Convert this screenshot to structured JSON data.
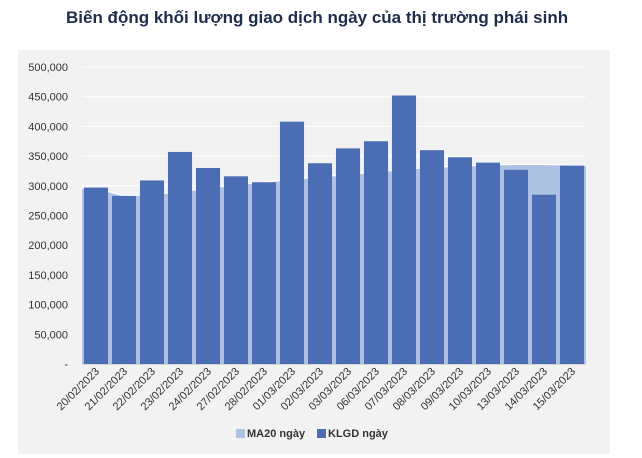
{
  "title": "Biến động khối lượng giao dịch ngày của thị trường phái sinh",
  "chart_data": {
    "type": "bar",
    "title": "Biến động khối lượng giao dịch ngày của thị trường phái sinh",
    "categories": [
      "20/02/2023",
      "21/02/2023",
      "22/02/2023",
      "23/02/2023",
      "24/02/2023",
      "27/02/2023",
      "28/02/2023",
      "01/03/2023",
      "02/03/2023",
      "03/03/2023",
      "06/03/2023",
      "07/03/2023",
      "08/03/2023",
      "09/03/2023",
      "10/03/2023",
      "13/03/2023",
      "14/03/2023",
      "15/03/2023"
    ],
    "series": [
      {
        "name": "MA20 ngày",
        "type": "area",
        "color": "#aec3e4",
        "values": [
          296000,
          283000,
          285000,
          290000,
          296000,
          302000,
          306000,
          311000,
          315000,
          319000,
          323000,
          328000,
          331000,
          333000,
          335000,
          336000,
          336000,
          335000
        ]
      },
      {
        "name": "KLGD ngày",
        "type": "bar",
        "color": "#4a6db4",
        "values": [
          297000,
          283000,
          309000,
          357000,
          330000,
          316000,
          306000,
          408000,
          338000,
          363000,
          375000,
          452000,
          360000,
          348000,
          339000,
          327000,
          285000,
          334000
        ]
      }
    ],
    "y_ticks": [
      "-",
      "50,000",
      "100,000",
      "150,000",
      "200,000",
      "250,000",
      "300,000",
      "350,000",
      "400,000",
      "450,000",
      "500,000"
    ],
    "ylim": [
      0,
      500000
    ],
    "grid": true,
    "legend_position": "bottom"
  }
}
